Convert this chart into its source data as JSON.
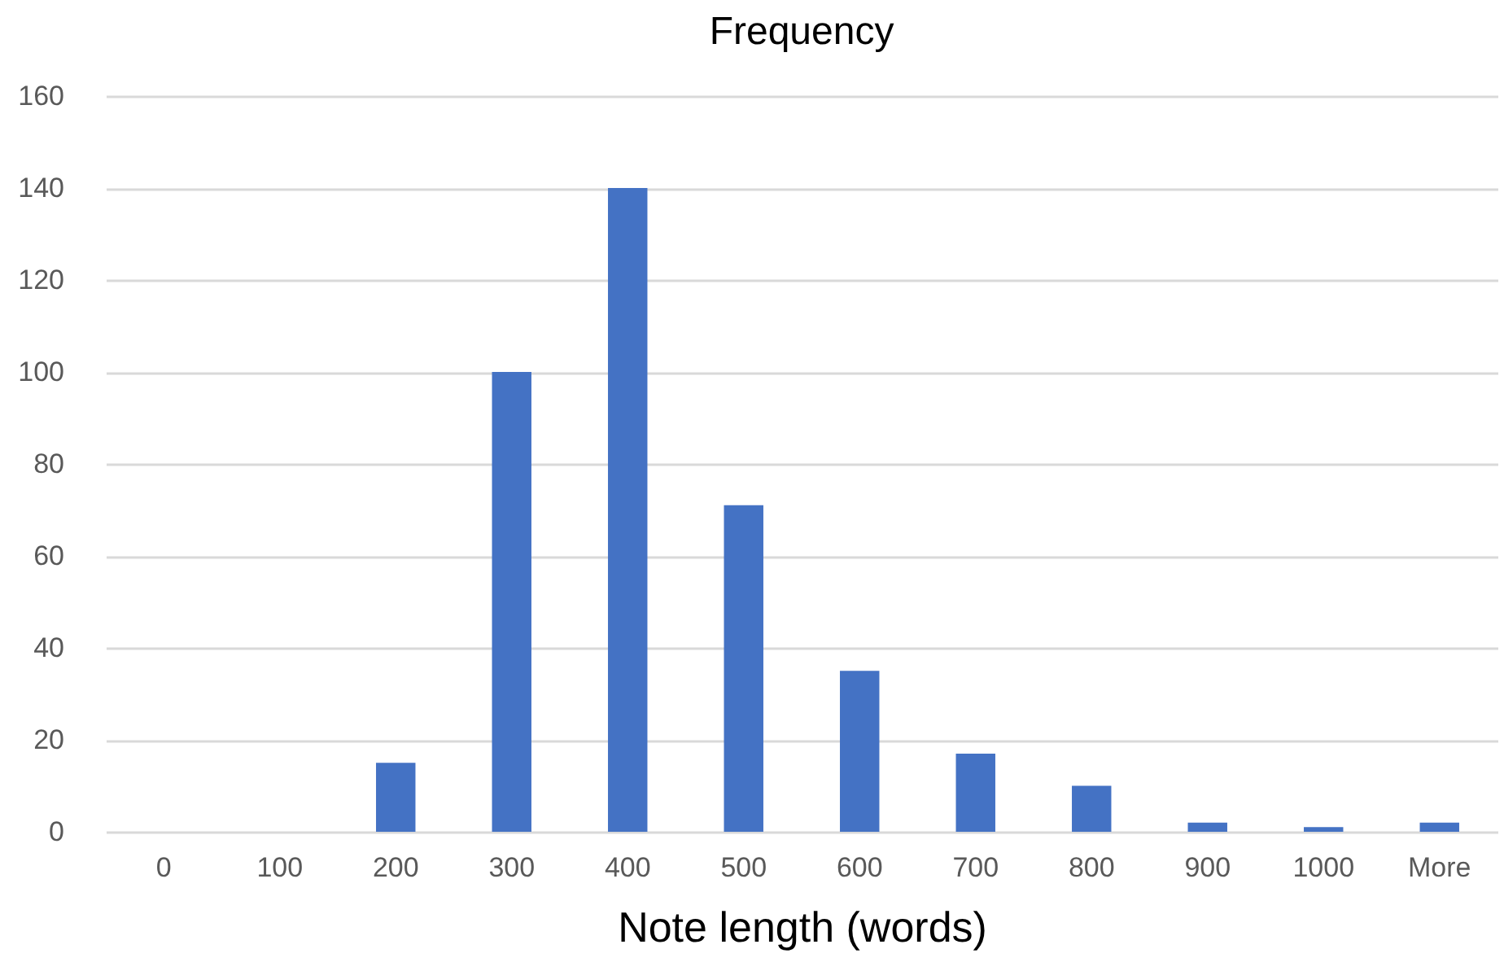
{
  "chart_data": {
    "type": "bar",
    "title": "Frequency",
    "xlabel": "Note length (words)",
    "categories": [
      "0",
      "100",
      "200",
      "300",
      "400",
      "500",
      "600",
      "700",
      "800",
      "900",
      "1000",
      "More"
    ],
    "values": [
      0,
      0,
      15,
      100,
      140,
      71,
      35,
      17,
      10,
      2,
      1,
      2
    ],
    "color": "#4472c4",
    "ylim": [
      0,
      160
    ],
    "yticks": [
      0,
      20,
      40,
      60,
      80,
      100,
      120,
      140,
      160
    ],
    "grid": "y"
  }
}
